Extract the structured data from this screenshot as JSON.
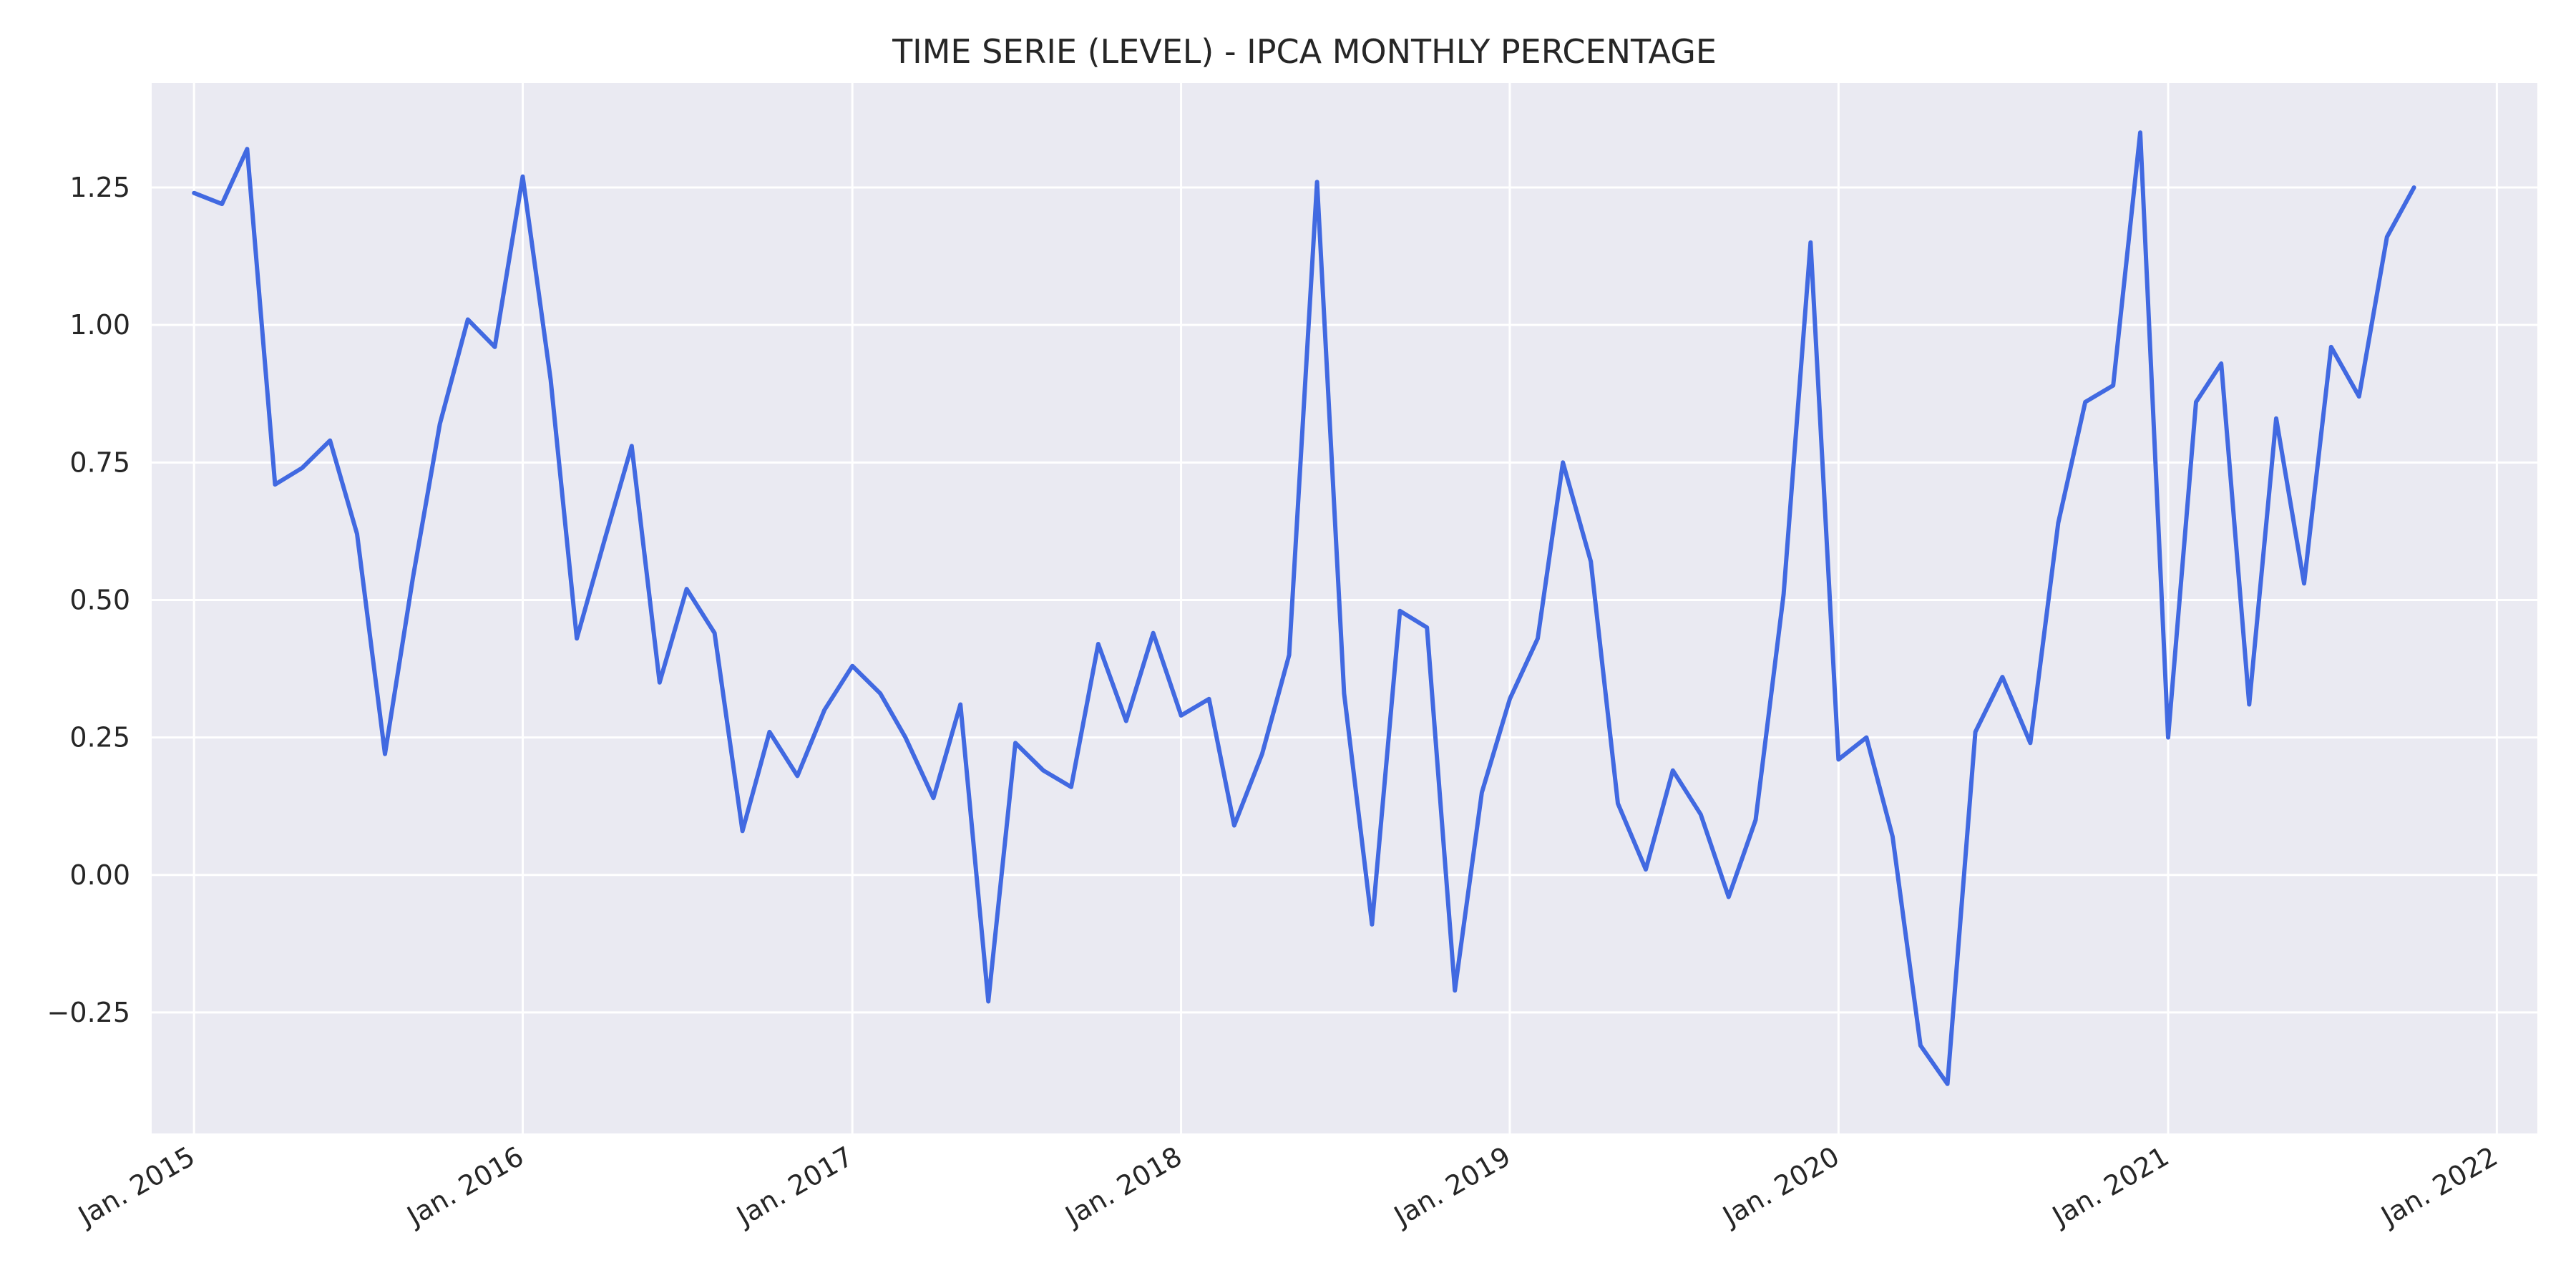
{
  "chart_data": {
    "type": "line",
    "title": "TIME SERIE (LEVEL) - IPCA MONTHLY PERCENTAGE",
    "xlabel": "",
    "ylabel": "",
    "grid": true,
    "xlim": [
      "2014-11-15",
      "2022-02-15"
    ],
    "ylim": [
      -0.47,
      1.44
    ],
    "x_ticks": [
      {
        "label": "Jan. 2015",
        "date": "2015-01-01"
      },
      {
        "label": "Jan. 2016",
        "date": "2016-01-01"
      },
      {
        "label": "Jan. 2017",
        "date": "2017-01-01"
      },
      {
        "label": "Jan. 2018",
        "date": "2018-01-01"
      },
      {
        "label": "Jan. 2019",
        "date": "2019-01-01"
      },
      {
        "label": "Jan. 2020",
        "date": "2020-01-01"
      },
      {
        "label": "Jan. 2021",
        "date": "2021-01-01"
      },
      {
        "label": "Jan. 2022",
        "date": "2022-01-01"
      }
    ],
    "y_ticks": [
      {
        "label": "−0.25",
        "value": -0.25
      },
      {
        "label": "0.00",
        "value": 0.0
      },
      {
        "label": "0.25",
        "value": 0.25
      },
      {
        "label": "0.50",
        "value": 0.5
      },
      {
        "label": "0.75",
        "value": 0.75
      },
      {
        "label": "1.00",
        "value": 1.0
      },
      {
        "label": "1.25",
        "value": 1.25
      }
    ],
    "series": [
      {
        "color": "#4169e1",
        "x": [
          "2015-01-01",
          "2015-02-01",
          "2015-03-01",
          "2015-04-01",
          "2015-05-01",
          "2015-06-01",
          "2015-07-01",
          "2015-08-01",
          "2015-09-01",
          "2015-10-01",
          "2015-11-01",
          "2015-12-01",
          "2016-01-01",
          "2016-02-01",
          "2016-03-01",
          "2016-04-01",
          "2016-05-01",
          "2016-06-01",
          "2016-07-01",
          "2016-08-01",
          "2016-09-01",
          "2016-10-01",
          "2016-11-01",
          "2016-12-01",
          "2017-01-01",
          "2017-02-01",
          "2017-03-01",
          "2017-04-01",
          "2017-05-01",
          "2017-06-01",
          "2017-07-01",
          "2017-08-01",
          "2017-09-01",
          "2017-10-01",
          "2017-11-01",
          "2017-12-01",
          "2018-01-01",
          "2018-02-01",
          "2018-03-01",
          "2018-04-01",
          "2018-05-01",
          "2018-06-01",
          "2018-07-01",
          "2018-08-01",
          "2018-09-01",
          "2018-10-01",
          "2018-11-01",
          "2018-12-01",
          "2019-01-01",
          "2019-02-01",
          "2019-03-01",
          "2019-04-01",
          "2019-05-01",
          "2019-06-01",
          "2019-07-01",
          "2019-08-01",
          "2019-09-01",
          "2019-10-01",
          "2019-11-01",
          "2019-12-01",
          "2020-01-01",
          "2020-02-01",
          "2020-03-01",
          "2020-04-01",
          "2020-05-01",
          "2020-06-01",
          "2020-07-01",
          "2020-08-01",
          "2020-09-01",
          "2020-10-01",
          "2020-11-01",
          "2020-12-01",
          "2021-01-01",
          "2021-02-01",
          "2021-03-01",
          "2021-04-01",
          "2021-05-01",
          "2021-06-01",
          "2021-07-01",
          "2021-08-01",
          "2021-09-01",
          "2021-10-01"
        ],
        "values": [
          1.24,
          1.22,
          1.32,
          0.71,
          0.74,
          0.79,
          0.62,
          0.22,
          0.54,
          0.82,
          1.01,
          0.96,
          1.27,
          0.9,
          0.43,
          0.61,
          0.78,
          0.35,
          0.52,
          0.44,
          0.08,
          0.26,
          0.18,
          0.3,
          0.38,
          0.33,
          0.25,
          0.14,
          0.31,
          -0.23,
          0.24,
          0.19,
          0.16,
          0.42,
          0.28,
          0.44,
          0.29,
          0.32,
          0.09,
          0.22,
          0.4,
          1.26,
          0.33,
          -0.09,
          0.48,
          0.45,
          -0.21,
          0.15,
          0.32,
          0.43,
          0.75,
          0.57,
          0.13,
          0.01,
          0.19,
          0.11,
          -0.04,
          0.1,
          0.51,
          1.15,
          0.21,
          0.25,
          0.07,
          -0.31,
          -0.38,
          0.26,
          0.36,
          0.24,
          0.64,
          0.86,
          0.89,
          1.35,
          0.25,
          0.86,
          0.93,
          0.31,
          0.83,
          0.53,
          0.96,
          0.87,
          1.16,
          1.25
        ]
      }
    ]
  }
}
